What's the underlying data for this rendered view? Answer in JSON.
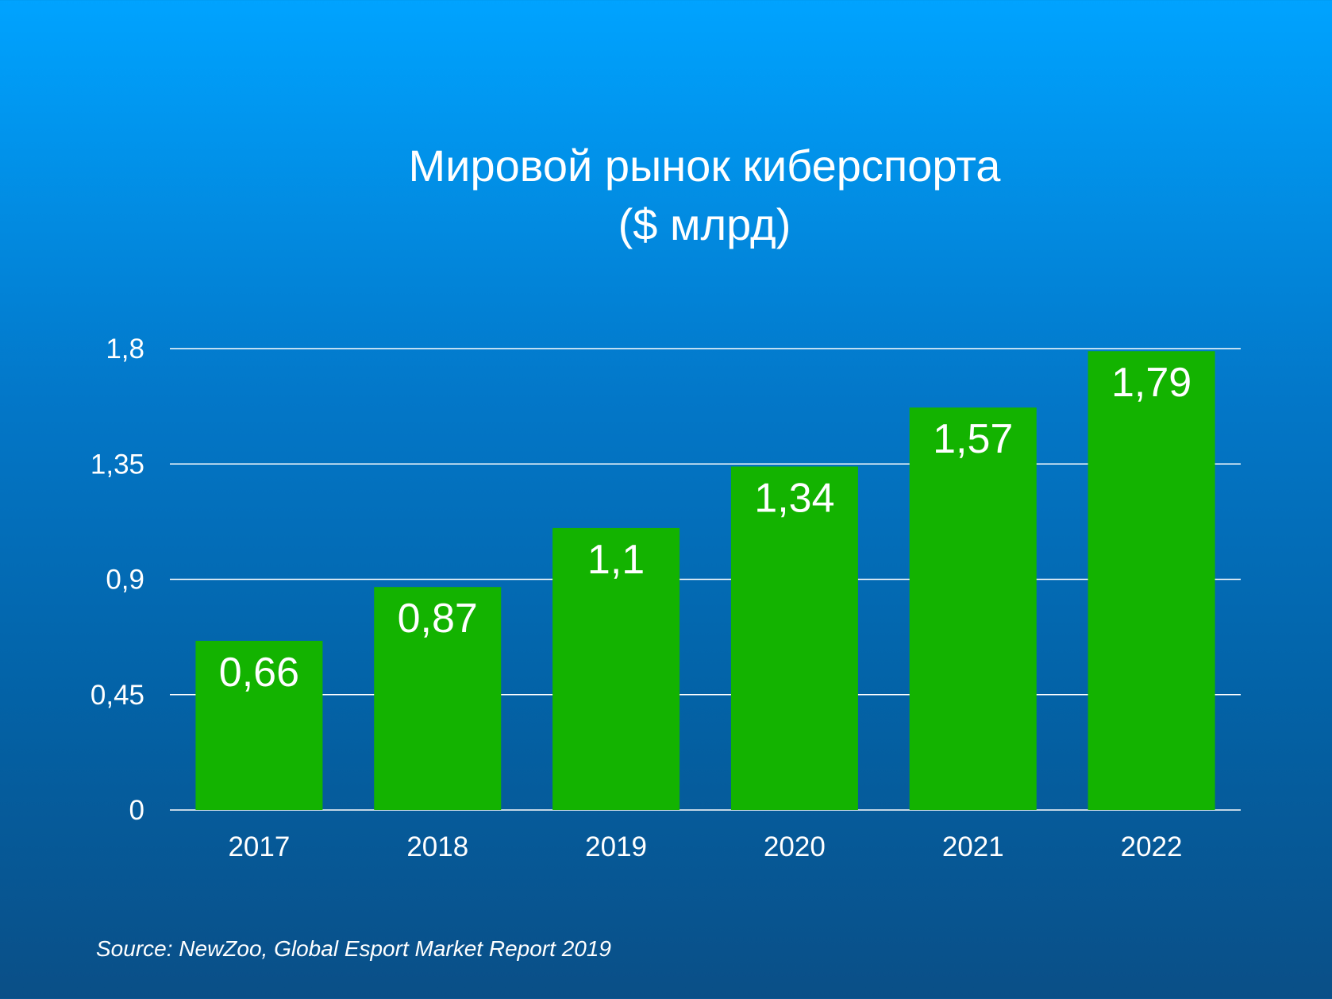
{
  "title_line1": "Мировой рынок киберспорта",
  "title_line2": "($ млрд)",
  "source": "Source: NewZoo, Global Esport Market Report 2019",
  "colors": {
    "bar": "#13b300",
    "grid": "#ffffff",
    "text": "#ffffff"
  },
  "chart_data": {
    "type": "bar",
    "title": "Мировой рынок киберспорта ($ млрд)",
    "xlabel": "",
    "ylabel": "",
    "categories": [
      "2017",
      "2018",
      "2019",
      "2020",
      "2021",
      "2022"
    ],
    "values": [
      0.66,
      0.87,
      1.1,
      1.34,
      1.57,
      1.79
    ],
    "value_labels": [
      "0,66",
      "0,87",
      "1,1",
      "1,34",
      "1,57",
      "1,79"
    ],
    "ylim": [
      0,
      1.8
    ],
    "yticks": [
      0,
      0.45,
      0.9,
      1.35,
      1.8
    ],
    "ytick_labels": [
      "0",
      "0,45",
      "0,9",
      "1,35",
      "1,8"
    ],
    "grid": true
  }
}
